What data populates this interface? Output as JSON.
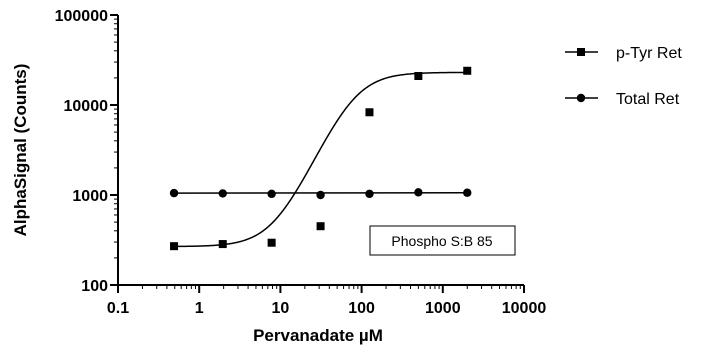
{
  "chart_data": {
    "type": "scatter",
    "xlabel": "Pervanadate µM",
    "ylabel": "AlphaSignal (Counts)",
    "x_scale": "log",
    "y_scale": "log",
    "xlim": [
      0.1,
      10000
    ],
    "ylim": [
      100,
      100000
    ],
    "x_ticks": [
      0.1,
      1,
      10,
      100,
      1000,
      10000
    ],
    "x_tick_labels": [
      "0.1",
      "1",
      "10",
      "100",
      "1000",
      "10000"
    ],
    "y_ticks": [
      100,
      1000,
      10000,
      100000
    ],
    "y_tick_labels": [
      "100",
      "1000",
      "10000",
      "100000"
    ],
    "grid": false,
    "legend_position": "right",
    "annotation": "Phospho S:B 85",
    "series": [
      {
        "name": "p-Tyr Ret",
        "marker": "square",
        "fit": "sigmoidal",
        "x": [
          0.49,
          1.95,
          7.8,
          31.25,
          125,
          500,
          2000
        ],
        "y": [
          270,
          285,
          295,
          450,
          8300,
          21000,
          24000
        ]
      },
      {
        "name": "Total Ret",
        "marker": "circle",
        "fit": "line",
        "x": [
          0.49,
          1.95,
          7.8,
          31.25,
          125,
          500,
          2000
        ],
        "y": [
          1050,
          1040,
          1030,
          1000,
          1030,
          1070,
          1060
        ]
      }
    ]
  }
}
